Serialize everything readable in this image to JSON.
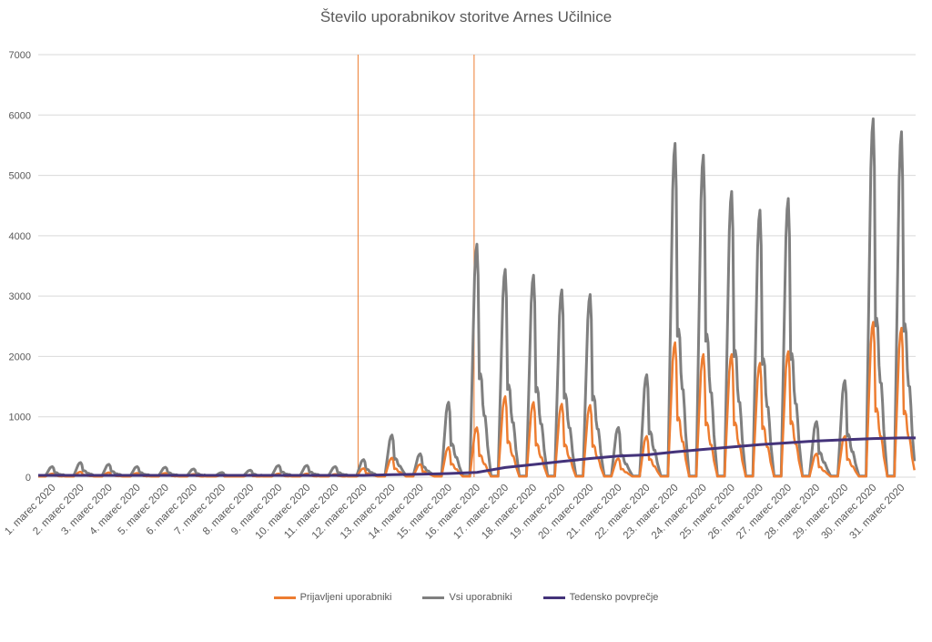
{
  "chart_data": {
    "type": "line",
    "title": "Število uporabnikov storitve Arnes Učilnice",
    "xlabel": "",
    "ylabel": "",
    "ylim": [
      0,
      7000
    ],
    "y_ticks": [
      0,
      1000,
      2000,
      3000,
      4000,
      5000,
      6000,
      7000
    ],
    "grid": true,
    "legend_position": "bottom",
    "categories": [
      "1. marec 2020",
      "2. marec 2020",
      "3. marec 2020",
      "4. marec 2020",
      "5. marec 2020",
      "6. marec 2020",
      "7. marec 2020",
      "8. marec 2020",
      "9. marec 2020",
      "10. marec 2020",
      "11. marec 2020",
      "12. marec 2020",
      "13. marec 2020",
      "14. marec 2020",
      "15. marec 2020",
      "16. marec 2020",
      "17. marec 2020",
      "18. marec 2020",
      "19. marec 2020",
      "20. marec 2020",
      "21. marec 2020",
      "22. marec 2020",
      "23. marec 2020",
      "24. marec 2020",
      "25. marec 2020",
      "26. marec 2020",
      "27. marec 2020",
      "28. marec 2020",
      "29. marec 2020",
      "30. marec 2020",
      "31. marec 2020"
    ],
    "vertical_markers": [
      11.3,
      15.4
    ],
    "colors": {
      "prijavljeni": "#ed7d31",
      "vsi": "#7f7f7f",
      "povprecje": "#44337a",
      "marker": "#ed7d31",
      "grid": "#d9d9d9"
    },
    "series": [
      {
        "name": "Prijavljeni uporabniki",
        "key": "prijavljeni",
        "daily_peaks": [
          60,
          90,
          80,
          70,
          70,
          50,
          30,
          40,
          60,
          60,
          50,
          150,
          330,
          220,
          510,
          850,
          1380,
          1280,
          1250,
          1230,
          320,
          700,
          2300,
          2100,
          2100,
          1950,
          2150,
          400,
          700,
          2650,
          2550
        ]
      },
      {
        "name": "Vsi uporabniki",
        "key": "vsi",
        "daily_peaks": [
          180,
          250,
          220,
          180,
          170,
          140,
          80,
          120,
          200,
          200,
          180,
          300,
          720,
          400,
          1280,
          3980,
          3550,
          3450,
          3200,
          3120,
          850,
          1750,
          5700,
          5500,
          4880,
          4560,
          4760,
          950,
          1650,
          6120,
          5900
        ]
      },
      {
        "name": "Tedensko povprečje",
        "key": "povprecje",
        "values": [
          30,
          30,
          30,
          30,
          30,
          30,
          30,
          30,
          30,
          30,
          30,
          30,
          40,
          50,
          60,
          80,
          160,
          210,
          260,
          310,
          350,
          370,
          420,
          460,
          500,
          540,
          570,
          600,
          620,
          640,
          650
        ]
      }
    ]
  }
}
